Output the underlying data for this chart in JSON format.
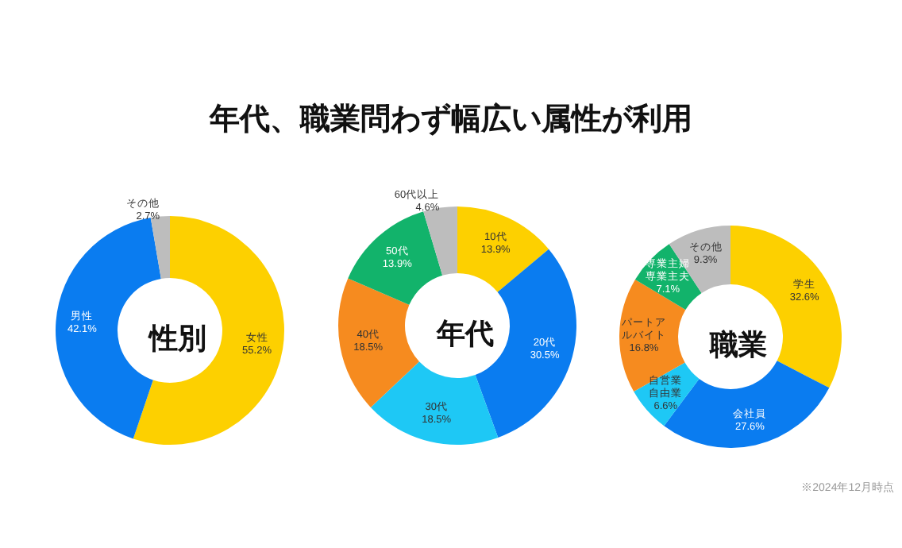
{
  "chart_data": [
    {
      "type": "other",
      "title": "年代、職業問わず幅広い属性が利用"
    },
    {
      "type": "donut",
      "title": "性別",
      "categories": [
        "女性",
        "男性",
        "その他"
      ],
      "values": [
        55.2,
        42.1,
        2.7
      ],
      "value_labels": [
        "55.2%",
        "42.1%",
        "2.7%"
      ],
      "colors": [
        "#fdd000",
        "#0a7cf0",
        "#bdbdbd"
      ],
      "legend": false
    },
    {
      "type": "donut",
      "title": "年代",
      "categories": [
        "10代",
        "20代",
        "30代",
        "40代",
        "50代",
        "60代以上"
      ],
      "values": [
        13.9,
        30.5,
        18.5,
        18.5,
        13.9,
        4.6
      ],
      "value_labels": [
        "13.9%",
        "30.5%",
        "18.5%",
        "18.5%",
        "13.9%",
        "4.6%"
      ],
      "colors": [
        "#fdd000",
        "#0a7cf0",
        "#1ec8f5",
        "#f68b1f",
        "#12b36b",
        "#bdbdbd"
      ],
      "legend": false
    },
    {
      "type": "donut",
      "title": "職業",
      "categories": [
        "学生",
        "会社員",
        "自営業自由業",
        "パートアルバイト",
        "専業主婦専業主夫",
        "その他"
      ],
      "values": [
        32.6,
        27.6,
        6.6,
        16.8,
        7.1,
        9.3
      ],
      "value_labels": [
        "32.6%",
        "27.6%",
        "6.6%",
        "16.8%",
        "7.1%",
        "9.3%"
      ],
      "colors": [
        "#fdd000",
        "#0a7cf0",
        "#1ec8f5",
        "#f68b1f",
        "#12b36b",
        "#bdbdbd"
      ],
      "legend": false,
      "annotations": [
        "※2024年12月時点"
      ]
    }
  ]
}
